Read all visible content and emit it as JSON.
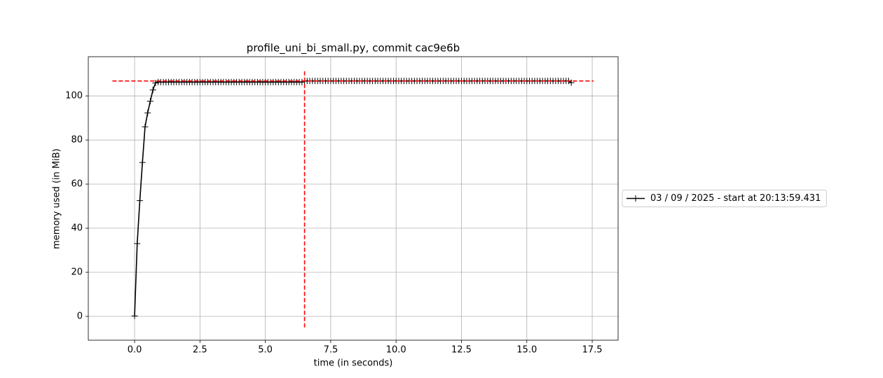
{
  "chart_data": {
    "type": "line",
    "title": "profile_uni_bi_small.py, commit cac9e6b",
    "xlabel": "time (in seconds)",
    "ylabel": "memory used (in MiB)",
    "x": [
      0,
      0.1,
      0.2,
      0.3,
      0.4,
      0.5,
      0.6,
      0.7,
      0.8,
      0.9,
      1,
      1.1,
      1.2,
      1.3,
      1.4,
      1.5,
      1.6,
      1.7,
      1.8,
      1.9,
      2,
      2.1,
      2.2,
      2.3,
      2.4,
      2.5,
      2.6,
      2.7,
      2.8,
      2.9,
      3,
      3.1,
      3.2,
      3.3,
      3.4,
      3.5,
      3.6,
      3.7,
      3.8,
      3.9,
      4,
      4.1,
      4.2,
      4.3,
      4.4,
      4.5,
      4.6,
      4.7,
      4.8,
      4.9,
      5,
      5.1,
      5.2,
      5.3,
      5.4,
      5.5,
      5.6,
      5.7,
      5.8,
      5.9,
      6,
      6.1,
      6.2,
      6.3,
      6.4,
      6.5,
      6.6,
      6.7,
      6.8,
      6.9,
      7,
      7.1,
      7.2,
      7.3,
      7.4,
      7.5,
      7.6,
      7.7,
      7.8,
      7.9,
      8,
      8.1,
      8.2,
      8.3,
      8.4,
      8.5,
      8.6,
      8.7,
      8.8,
      8.9,
      9,
      9.1,
      9.2,
      9.3,
      9.4,
      9.5,
      9.6,
      9.7,
      9.8,
      9.9,
      10,
      10.1,
      10.2,
      10.3,
      10.4,
      10.5,
      10.6,
      10.7,
      10.8,
      10.9,
      11,
      11.1,
      11.2,
      11.3,
      11.4,
      11.5,
      11.6,
      11.7,
      11.8,
      11.9,
      12,
      12.1,
      12.2,
      12.3,
      12.4,
      12.5,
      12.6,
      12.7,
      12.8,
      12.9,
      13,
      13.1,
      13.2,
      13.3,
      13.4,
      13.5,
      13.6,
      13.7,
      13.8,
      13.9,
      14,
      14.1,
      14.2,
      14.3,
      14.4,
      14.5,
      14.6,
      14.7,
      14.8,
      14.9,
      15,
      15.1,
      15.2,
      15.3,
      15.4,
      15.5,
      15.6,
      15.7,
      15.8,
      15.9,
      16,
      16.1,
      16.2,
      16.3,
      16.4,
      16.5,
      16.6,
      16.7
    ],
    "series": [
      {
        "name": "03 / 09 / 2025 - start at 20:13:59.431",
        "color": "#000000",
        "values": [
          0.2,
          33.0,
          52.5,
          69.8,
          86.0,
          92.3,
          97.6,
          102.7,
          105.9,
          106.3,
          106.3,
          106.3,
          106.3,
          106.3,
          106.3,
          106.3,
          106.3,
          106.3,
          106.3,
          106.3,
          106.3,
          106.3,
          106.3,
          106.3,
          106.3,
          106.3,
          106.3,
          106.3,
          106.3,
          106.3,
          106.3,
          106.3,
          106.3,
          106.3,
          106.3,
          106.3,
          106.3,
          106.3,
          106.3,
          106.3,
          106.3,
          106.3,
          106.3,
          106.3,
          106.3,
          106.3,
          106.3,
          106.3,
          106.3,
          106.3,
          106.3,
          106.3,
          106.3,
          106.3,
          106.3,
          106.3,
          106.3,
          106.3,
          106.3,
          106.3,
          106.3,
          106.3,
          106.3,
          106.3,
          106.3,
          106.8,
          106.8,
          106.8,
          106.8,
          106.8,
          106.8,
          106.8,
          106.8,
          106.8,
          106.8,
          106.8,
          106.8,
          106.8,
          106.8,
          106.8,
          106.8,
          106.8,
          106.8,
          106.8,
          106.8,
          106.8,
          106.8,
          106.8,
          106.8,
          106.8,
          106.8,
          106.8,
          106.8,
          106.8,
          106.8,
          106.8,
          106.8,
          106.8,
          106.8,
          106.8,
          106.8,
          106.8,
          106.8,
          106.8,
          106.8,
          106.8,
          106.8,
          106.8,
          106.8,
          106.8,
          106.8,
          106.8,
          106.8,
          106.8,
          106.8,
          106.8,
          106.8,
          106.8,
          106.8,
          106.8,
          106.8,
          106.8,
          106.8,
          106.8,
          106.8,
          106.8,
          106.8,
          106.8,
          106.8,
          106.8,
          106.8,
          106.8,
          106.8,
          106.8,
          106.8,
          106.8,
          106.8,
          106.8,
          106.8,
          106.8,
          106.8,
          106.8,
          106.8,
          106.8,
          106.8,
          106.8,
          106.8,
          106.8,
          106.8,
          106.8,
          106.8,
          106.8,
          106.8,
          106.8,
          106.8,
          106.8,
          106.8,
          106.8,
          106.8,
          106.8,
          106.8,
          106.8,
          106.8,
          106.8,
          106.8,
          106.8,
          106.8,
          106.0
        ]
      }
    ],
    "hline": {
      "y": 106.8,
      "xmin": -0.85,
      "xmax": 17.55,
      "color": "#ff0000"
    },
    "vline": {
      "x": 6.5,
      "ymin": -5,
      "ymax": 112,
      "color": "#ff0000"
    },
    "xlim": [
      -1.77,
      18.49
    ],
    "ylim": [
      -10.8,
      117.8
    ],
    "xticks": [
      {
        "value": 0,
        "label": "0.0"
      },
      2.5,
      {
        "value": 5,
        "label": "5.0"
      },
      7.5,
      {
        "value": 10,
        "label": "10.0"
      },
      12.5,
      {
        "value": 15,
        "label": "15.0"
      },
      17.5
    ],
    "yticks": [
      0,
      20,
      40,
      60,
      80,
      100
    ],
    "grid": true,
    "legend": "right"
  }
}
